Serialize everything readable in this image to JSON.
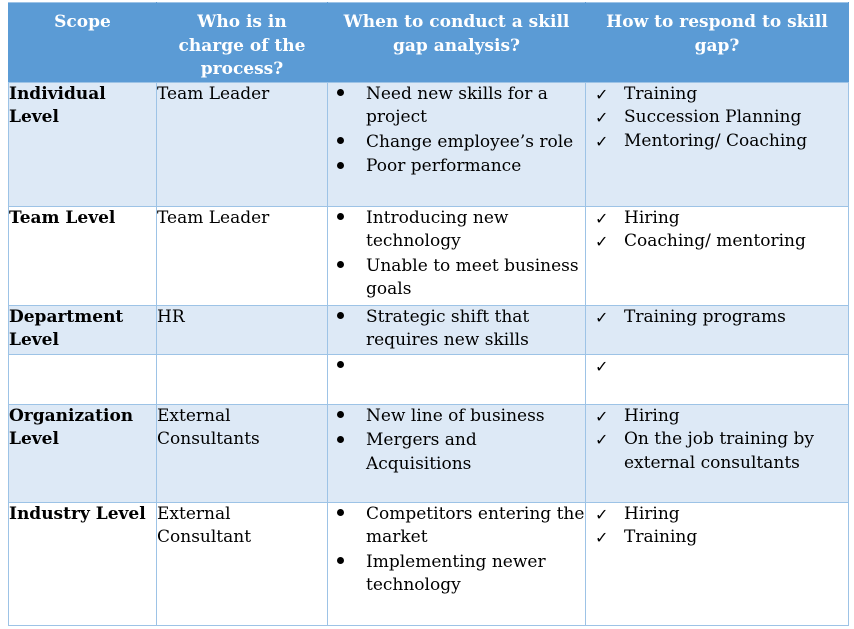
{
  "headers": [
    "Scope",
    "Who is in charge of the process?",
    "When to conduct a skill gap analysis?",
    "How to respond to skill gap?"
  ],
  "rows": [
    {
      "scope": "Individual Level",
      "who": "Team Leader",
      "when": [
        "Need new skills for a project",
        "Change employee’s role",
        "Poor performance"
      ],
      "how": [
        "Training",
        "Succession Planning",
        "Mentoring/ Coaching"
      ]
    },
    {
      "scope": "Team Level",
      "who": "Team Leader",
      "when": [
        "Introducing new technology",
        "Unable to meet business goals"
      ],
      "how": [
        "Hiring",
        "Coaching/ mentoring"
      ]
    },
    {
      "scope": "Department Level",
      "who": "HR",
      "when": [
        "Strategic shift that requires new skills"
      ],
      "how": [
        "Training programs"
      ]
    },
    {
      "scope": "",
      "who": "",
      "when": [
        ""
      ],
      "how": [
        ""
      ]
    },
    {
      "scope": "Organization Level",
      "who": "External Consultants",
      "when": [
        "New line of business",
        "Mergers and Acquisitions"
      ],
      "how": [
        "Hiring",
        "On the job training by external consultants"
      ]
    },
    {
      "scope": "Industry Level",
      "who": "External Consultant",
      "when": [
        "Competitors entering the market",
        "Implementing newer technology"
      ],
      "how": [
        "Hiring",
        "Training"
      ]
    }
  ]
}
